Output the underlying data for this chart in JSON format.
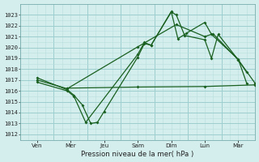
{
  "xlabel": "Pression niveau de la mer( hPa )",
  "bg_color": "#d4eeed",
  "grid_major_color": "#9ecece",
  "grid_minor_color": "#b8dede",
  "line_color": "#1a6020",
  "ylim": [
    1011.5,
    1024.0
  ],
  "yticks": [
    1012,
    1013,
    1014,
    1015,
    1016,
    1017,
    1018,
    1019,
    1020,
    1021,
    1022,
    1023
  ],
  "xlim": [
    0,
    14
  ],
  "day_labels": [
    "Ven",
    "Mer",
    "Jeu",
    "Sam",
    "Dim",
    "Lun",
    "Mar"
  ],
  "day_tick_x": [
    1,
    3,
    5,
    7,
    9,
    11,
    13
  ],
  "vline_x": [
    0,
    2,
    4,
    6,
    8,
    10,
    12,
    14
  ],
  "series": [
    {
      "x": [
        1.0,
        2.8,
        3.2,
        3.7,
        4.2,
        4.6,
        5.0,
        7.0,
        7.4,
        7.8,
        9.0,
        9.3,
        9.8,
        11.0,
        11.4,
        11.8,
        13.0,
        13.5
      ],
      "y": [
        1017.2,
        1016.1,
        1015.6,
        1014.7,
        1013.0,
        1013.1,
        1014.1,
        1019.1,
        1020.35,
        1020.2,
        1023.25,
        1023.0,
        1021.1,
        1020.7,
        1019.0,
        1021.2,
        1018.85,
        1017.7
      ]
    },
    {
      "x": [
        1.0,
        2.8,
        3.2,
        3.9,
        7.0,
        7.4,
        7.8,
        9.0,
        9.4,
        9.9,
        11.0,
        11.4,
        13.0,
        13.5
      ],
      "y": [
        1016.8,
        1016.0,
        1015.5,
        1013.1,
        1019.35,
        1020.45,
        1020.2,
        1023.3,
        1020.8,
        1021.3,
        1022.3,
        1021.2,
        1018.9,
        1016.7
      ]
    },
    {
      "x": [
        2.8,
        7.0,
        11.0,
        14.0
      ],
      "y": [
        1016.25,
        1016.35,
        1016.4,
        1016.55
      ]
    },
    {
      "x": [
        1.0,
        2.8,
        7.0,
        9.3,
        11.0,
        11.5,
        13.0,
        14.0
      ],
      "y": [
        1017.0,
        1016.2,
        1020.05,
        1022.1,
        1021.0,
        1021.25,
        1018.85,
        1016.7
      ]
    }
  ]
}
